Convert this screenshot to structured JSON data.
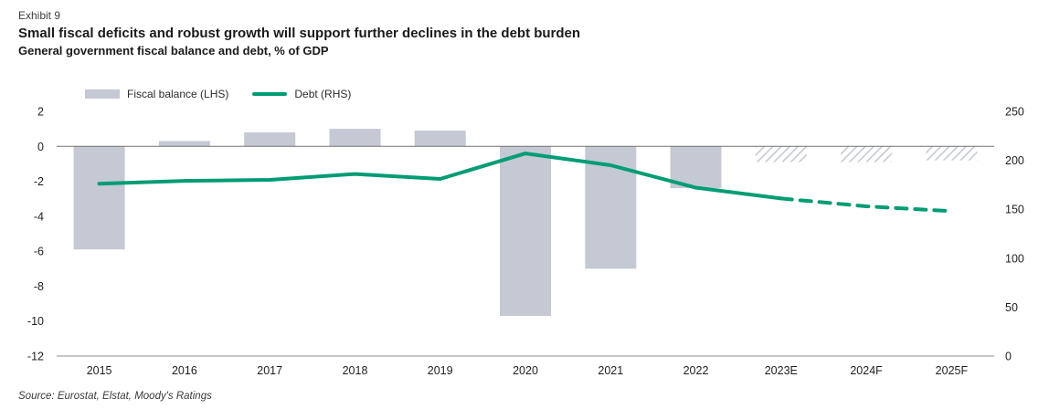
{
  "exhibit_label": "Exhibit 9",
  "title": "Small fiscal deficits and robust growth will support further declines in the debt burden",
  "subtitle": "General government fiscal balance and debt, % of GDP",
  "source_note": "Source: Eurostat, Elstat, Moody's Ratings",
  "colors": {
    "bar": "#c4c9d4",
    "line": "#009c74",
    "zero_line": "#737373",
    "axis_line": "#8c8c8c",
    "text": "#1f1f1f"
  },
  "legend": {
    "items": [
      {
        "label": "Fiscal balance (LHS)",
        "swatch": "bar"
      },
      {
        "label": "Debt (RHS)",
        "swatch": "line"
      }
    ]
  },
  "chart_data": {
    "type": "bar",
    "subtype": "bar+line combo, dual axis",
    "categories": [
      "2015",
      "2016",
      "2017",
      "2018",
      "2019",
      "2020",
      "2021",
      "2022",
      "2023E",
      "2024F",
      "2025F"
    ],
    "series": [
      {
        "name": "Fiscal balance (LHS)",
        "type": "bar",
        "axis": "left",
        "values": [
          -5.9,
          0.3,
          0.8,
          1.0,
          0.9,
          -9.7,
          -7.0,
          -2.4,
          -0.9,
          -0.9,
          -0.8
        ],
        "forecast_from_index": 8,
        "forecast_style": "hatched",
        "color": "#c4c9d4"
      },
      {
        "name": "Debt (RHS)",
        "type": "line",
        "axis": "right",
        "values": [
          176,
          179,
          180,
          186,
          181,
          207,
          195,
          172,
          161,
          153,
          148
        ],
        "forecast_from_index": 8,
        "forecast_style": "dashed",
        "color": "#009c74"
      }
    ],
    "left_axis": {
      "min": -12,
      "max": 2,
      "ticks": [
        2,
        0,
        -2,
        -4,
        -6,
        -8,
        -10,
        -12
      ]
    },
    "right_axis": {
      "min": 0,
      "max": 250,
      "ticks": [
        250,
        200,
        150,
        100,
        50,
        0
      ]
    },
    "grid": false,
    "legend_position": "top-left",
    "forecast_note": "2023E-2025F shown as hatched bars and dashed line"
  }
}
